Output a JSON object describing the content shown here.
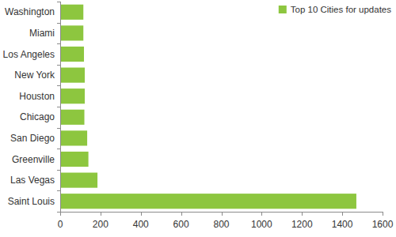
{
  "chart_data": {
    "type": "bar",
    "orientation": "horizontal",
    "categories": [
      "Saint Louis",
      "Las Vegas",
      "Greenville",
      "San Diego",
      "Chicago",
      "Houston",
      "New York",
      "Los Angeles",
      "Miami",
      "Washington"
    ],
    "series": [
      {
        "name": "Top 10 Cities for updates",
        "color": "#8dc63f",
        "values": [
          1470,
          185,
          140,
          134,
          120,
          122,
          122,
          118,
          115,
          115
        ]
      }
    ],
    "xlim": [
      0,
      1600
    ],
    "xticks": [
      0,
      200,
      400,
      600,
      800,
      1000,
      1200,
      1400,
      1600
    ],
    "grid": false,
    "legend": "upper right"
  }
}
